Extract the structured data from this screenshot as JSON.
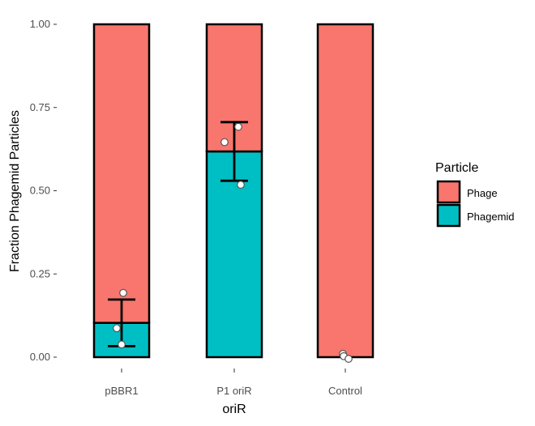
{
  "chart_data": {
    "type": "bar",
    "stacked": true,
    "xlabel": "oriR",
    "ylabel": "Fraction Phagemid Particles",
    "ylim": [
      0,
      1
    ],
    "yticks": [
      "0.00",
      "0.25",
      "0.50",
      "0.75",
      "1.00"
    ],
    "ytick_values": [
      0,
      0.25,
      0.5,
      0.75,
      1.0
    ],
    "categories": [
      "pBBR1",
      "P1 oriR",
      "Control"
    ],
    "series": [
      {
        "name": "Phage",
        "color": "#F8766D",
        "values": [
          0.897,
          0.382,
          1.0
        ]
      },
      {
        "name": "Phagemid",
        "color": "#00BFC4",
        "values": [
          0.103,
          0.618,
          0.0
        ]
      }
    ],
    "error_bars": [
      {
        "category": "pBBR1",
        "mean": 0.103,
        "low": 0.033,
        "high": 0.173
      },
      {
        "category": "P1 oriR",
        "mean": 0.618,
        "low": 0.53,
        "high": 0.706
      }
    ],
    "points": [
      {
        "category": "pBBR1",
        "values": [
          0.193,
          0.087,
          0.038
        ]
      },
      {
        "category": "P1 oriR",
        "values": [
          0.692,
          0.646,
          0.518
        ]
      },
      {
        "category": "Control",
        "values": [
          0.01,
          0.003,
          -0.005
        ]
      }
    ],
    "legend": {
      "title": "Particle",
      "position": "right",
      "entries": [
        {
          "label": "Phage",
          "color": "#F8766D"
        },
        {
          "label": "Phagemid",
          "color": "#00BFC4"
        }
      ]
    },
    "grid": false
  }
}
